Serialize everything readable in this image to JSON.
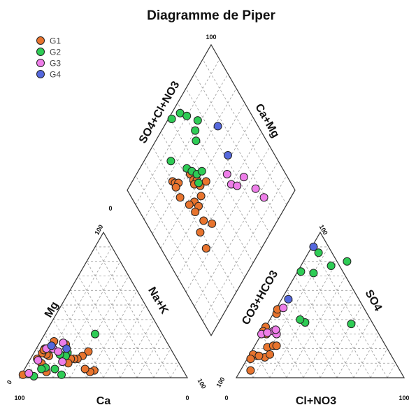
{
  "chart_data": {
    "type": "scatter",
    "subtype": "piper-diagram",
    "title": "Diagramme de Piper",
    "legend": {
      "placement": "top-left",
      "entries": [
        {
          "name": "G1",
          "color": "#e8742e"
        },
        {
          "name": "G2",
          "color": "#2ecc55"
        },
        {
          "name": "G3",
          "color": "#ee7ee9"
        },
        {
          "name": "G4",
          "color": "#5568dd"
        }
      ]
    },
    "axis_labels": {
      "cation_left": "Mg",
      "cation_right": "Na+K",
      "cation_bottom": "Ca",
      "anion_left": "CO3+HCO3",
      "anion_right": "SO4",
      "anion_bottom": "Cl+NO3",
      "diamond_upper_left": "SO4+Cl+NO3",
      "diamond_upper_right": "Ca+Mg"
    },
    "tick_labels": {
      "cation_bottom_left": "100",
      "cation_bottom_right": "0",
      "cation_top": "100",
      "cation_left_bottom": "0",
      "cation_right_bottom": "100",
      "anion_bottom_left": "0",
      "anion_bottom_right": "100",
      "anion_top": "100",
      "anion_left_bottom": "100",
      "diamond_top": "100",
      "diamond_left": "0"
    },
    "grid": true,
    "series": [
      {
        "name": "G1",
        "cations": [
          [
            5,
            42
          ],
          [
            4,
            40
          ],
          [
            6,
            36
          ],
          [
            18,
            32
          ],
          [
            15,
            30
          ],
          [
            13,
            28
          ],
          [
            13,
            26
          ],
          [
            13,
            24
          ],
          [
            10,
            24
          ],
          [
            23,
            16
          ],
          [
            24,
            14
          ],
          [
            4,
            14
          ],
          [
            15,
            10
          ],
          [
            25,
            8
          ],
          [
            16,
            8
          ],
          [
            10,
            8
          ],
          [
            13,
            4
          ],
          [
            2,
            1
          ],
          [
            20,
            5
          ],
          [
            17,
            5
          ],
          [
            19,
            5
          ]
        ],
        "anions": [
          [
            21,
            8
          ],
          [
            22,
            11
          ],
          [
            22,
            13
          ],
          [
            14,
            10
          ],
          [
            15,
            5
          ],
          [
            16,
            2
          ],
          [
            13,
            2
          ],
          [
            15,
            6
          ],
          [
            16,
            12
          ],
          [
            5,
            6
          ],
          [
            30,
            3
          ],
          [
            44,
            2
          ],
          [
            47,
            1
          ],
          [
            35,
            0
          ],
          [
            32,
            0
          ]
        ],
        "diamond": [
          [
            30,
            76
          ],
          [
            31,
            74
          ],
          [
            33,
            72
          ],
          [
            30,
            72
          ],
          [
            29,
            66
          ],
          [
            43,
            68
          ],
          [
            43,
            64
          ],
          [
            45,
            62
          ],
          [
            42,
            62
          ],
          [
            45,
            58
          ],
          [
            42,
            54
          ],
          [
            36,
            56
          ],
          [
            50,
            56
          ],
          [
            37,
            52
          ],
          [
            32,
            58
          ],
          [
            33,
            52
          ],
          [
            35,
            44
          ],
          [
            29,
            42
          ],
          [
            39,
            38
          ],
          [
            27,
            33
          ]
        ]
      },
      {
        "name": "G2",
        "cations": [
          [
            2,
            24
          ],
          [
            6,
            18
          ],
          [
            17,
            20
          ],
          [
            15,
            20
          ],
          [
            16,
            16
          ],
          [
            30,
            30
          ],
          [
            7,
            12
          ],
          [
            6,
            10
          ],
          [
            1,
            8
          ]
        ],
        "anions": [
          [
            37,
            50
          ],
          [
            73,
            2
          ],
          [
            38,
            22
          ],
          [
            86,
            6
          ],
          [
            72,
            10
          ],
          [
            77,
            18
          ],
          [
            80,
            26
          ],
          [
            40,
            18
          ]
        ],
        "diamond": [
          [
            51,
            98
          ],
          [
            58,
            95
          ],
          [
            61,
            90
          ],
          [
            36,
            84
          ],
          [
            61,
            80
          ],
          [
            58,
            76
          ],
          [
            66,
            82
          ],
          [
            43,
            72
          ],
          [
            45,
            68
          ],
          [
            47,
            64
          ],
          [
            45,
            60
          ],
          [
            51,
            62
          ]
        ]
      },
      {
        "name": "G3",
        "cations": [
          [
            11,
            20
          ],
          [
            24,
            14
          ],
          [
            20,
            10
          ],
          [
            18,
            14
          ],
          [
            12,
            5
          ],
          [
            20,
            6
          ],
          [
            3,
            4
          ]
        ],
        "anions": [
          [
            32,
            6
          ],
          [
            30,
            0
          ],
          [
            48,
            4
          ],
          [
            30,
            9
          ],
          [
            31,
            3
          ],
          [
            33,
            7
          ]
        ],
        "diamond": [
          [
            65,
            46
          ],
          [
            64,
            40
          ],
          [
            67,
            36
          ],
          [
            74,
            35
          ],
          [
            77,
            24
          ],
          [
            79,
            16
          ]
        ]
      },
      {
        "name": "G4",
        "cations": [
          [
            20,
            18
          ],
          [
            22,
            8
          ]
        ],
        "anions": [
          [
            90,
            1
          ],
          [
            54,
            4
          ]
        ],
        "diamond": [
          [
            76,
            68
          ],
          [
            72,
            52
          ]
        ]
      }
    ]
  }
}
